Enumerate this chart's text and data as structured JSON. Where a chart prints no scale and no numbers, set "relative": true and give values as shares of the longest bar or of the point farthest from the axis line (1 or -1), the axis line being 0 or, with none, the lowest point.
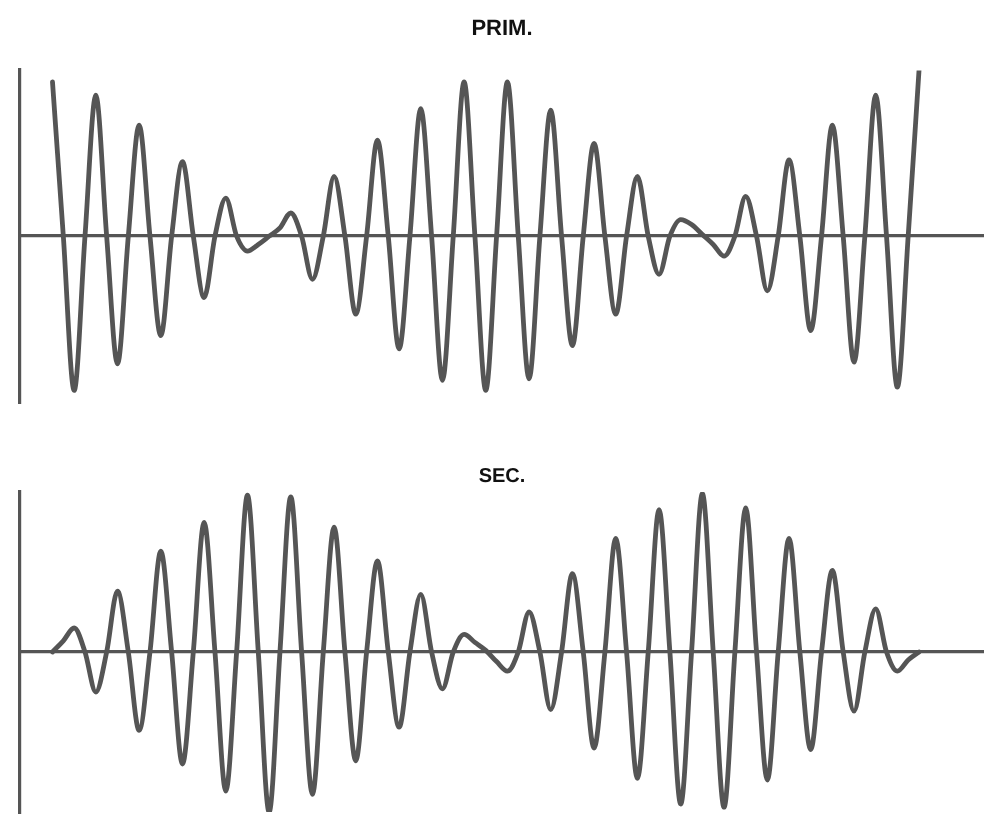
{
  "chart_data": [
    {
      "type": "line",
      "title": "PRIM.",
      "relative": true,
      "color": "#555555",
      "categories": [
        null,
        null,
        null,
        null,
        null,
        null,
        null,
        null,
        null,
        null,
        null,
        null,
        null,
        null,
        null,
        null,
        null,
        null,
        null,
        null,
        null,
        null,
        null,
        null,
        null,
        null,
        null,
        null,
        null,
        null,
        null,
        null,
        null,
        null,
        null,
        null,
        null,
        null,
        null,
        null,
        null,
        null,
        null,
        null,
        null,
        null,
        null,
        null,
        null,
        null,
        null,
        null,
        null,
        null,
        null,
        null,
        null,
        null,
        null,
        null,
        null,
        null,
        null,
        null,
        null,
        null,
        null,
        null,
        null,
        null,
        null,
        null,
        null,
        null,
        null,
        null,
        null,
        null,
        null,
        null,
        null
      ],
      "values": [
        0.93,
        0,
        -0.93,
        0,
        0.85,
        0,
        -0.77,
        0,
        0.67,
        0,
        -0.6,
        0,
        0.45,
        0,
        -0.37,
        0,
        0.23,
        0,
        -0.09,
        -0.05,
        0,
        0.05,
        0.14,
        0,
        -0.26,
        0,
        0.36,
        0,
        -0.47,
        0,
        0.58,
        0,
        -0.68,
        0,
        0.77,
        0,
        -0.87,
        0,
        0.93,
        0,
        -0.93,
        0,
        0.93,
        0,
        -0.86,
        0,
        0.76,
        0,
        -0.66,
        0,
        0.56,
        0,
        -0.47,
        0,
        0.36,
        0,
        -0.23,
        0,
        0.1,
        0.07,
        0.01,
        -0.05,
        -0.12,
        0,
        0.24,
        0,
        -0.33,
        0,
        0.46,
        0,
        -0.57,
        0,
        0.67,
        0,
        -0.76,
        0,
        0.85,
        0,
        -0.91,
        0,
        1.0
      ]
    },
    {
      "type": "line",
      "title": "SEC.",
      "relative": true,
      "color": "#555555",
      "categories": [
        null,
        null,
        null,
        null,
        null,
        null,
        null,
        null,
        null,
        null,
        null,
        null,
        null,
        null,
        null,
        null,
        null,
        null,
        null,
        null,
        null,
        null,
        null,
        null,
        null,
        null,
        null,
        null,
        null,
        null,
        null,
        null,
        null,
        null,
        null,
        null,
        null,
        null,
        null,
        null,
        null,
        null,
        null,
        null,
        null,
        null,
        null,
        null,
        null,
        null,
        null,
        null,
        null,
        null,
        null,
        null,
        null,
        null,
        null,
        null,
        null,
        null,
        null,
        null,
        null,
        null,
        null,
        null,
        null,
        null,
        null,
        null,
        null,
        null,
        null,
        null,
        null,
        null,
        null,
        null,
        null
      ],
      "values": [
        0,
        0.07,
        0.15,
        0,
        -0.25,
        0,
        0.38,
        0,
        -0.49,
        0,
        0.63,
        0,
        -0.7,
        0,
        0.81,
        0,
        -0.87,
        0,
        0.98,
        0,
        -1.0,
        0,
        0.97,
        0,
        -0.89,
        0,
        0.78,
        0,
        -0.68,
        0,
        0.57,
        0,
        -0.47,
        0,
        0.36,
        0,
        -0.23,
        0,
        0.11,
        0.06,
        0.01,
        -0.06,
        -0.12,
        0,
        0.25,
        0,
        -0.36,
        0,
        0.49,
        0,
        -0.6,
        0,
        0.71,
        0,
        -0.79,
        0,
        0.89,
        0,
        -0.95,
        0,
        0.99,
        0,
        -0.97,
        0,
        0.9,
        0,
        -0.8,
        0,
        0.71,
        0,
        -0.61,
        0,
        0.51,
        0,
        -0.37,
        0,
        0.27,
        0,
        -0.12,
        -0.05,
        0
      ]
    }
  ]
}
